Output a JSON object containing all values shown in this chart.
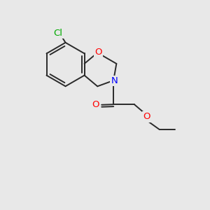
{
  "bg_color": "#e8e8e8",
  "bond_color": "#2a2a2a",
  "bond_width": 1.4,
  "atom_colors": {
    "Cl": "#00aa00",
    "O": "#ff0000",
    "N": "#0000ff"
  },
  "font_size": 9.5
}
